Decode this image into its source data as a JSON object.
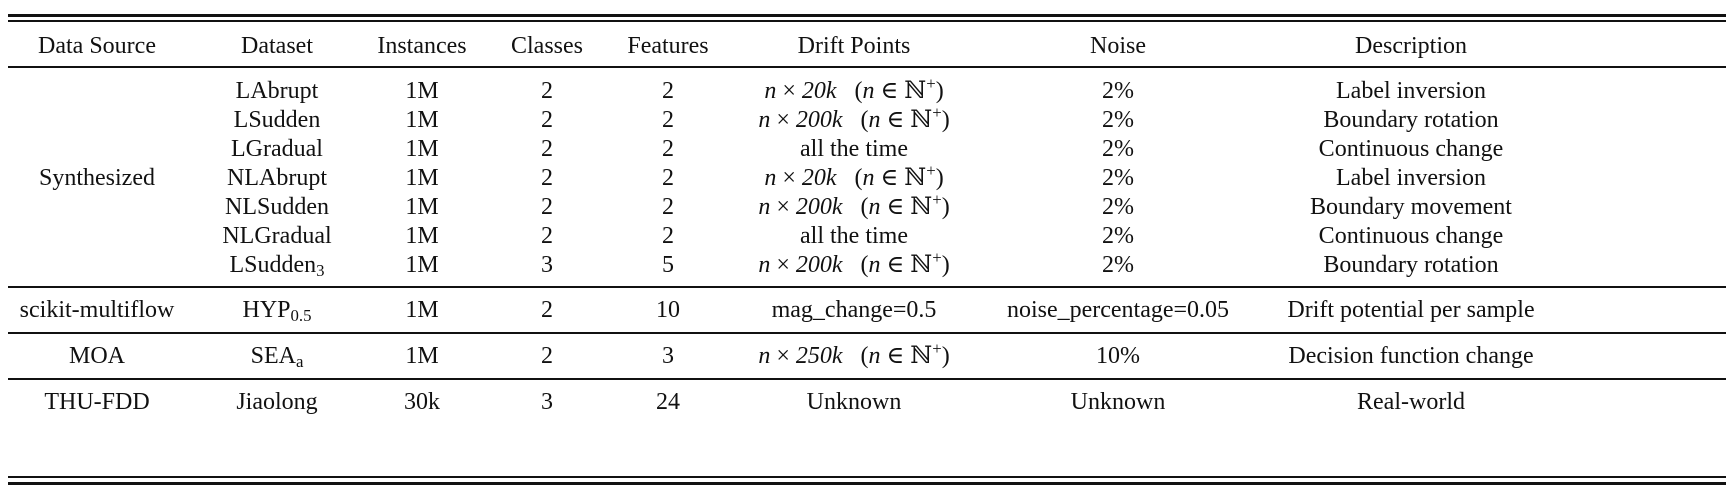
{
  "table": {
    "headers": [
      "Data Source",
      "Dataset",
      "Instances",
      "Classes",
      "Features",
      "Drift Points",
      "Noise",
      "Description"
    ],
    "groups": [
      {
        "source": "Synthesized",
        "rows": [
          {
            "dataset": "LAbrupt",
            "dataset_sub": "",
            "instances": "1M",
            "classes": "2",
            "features": "2",
            "drift": {
              "type": "math",
              "mult": "20k"
            },
            "noise": "2%",
            "description": "Label inversion"
          },
          {
            "dataset": "LSudden",
            "dataset_sub": "",
            "instances": "1M",
            "classes": "2",
            "features": "2",
            "drift": {
              "type": "math",
              "mult": "200k"
            },
            "noise": "2%",
            "description": "Boundary rotation"
          },
          {
            "dataset": "LGradual",
            "dataset_sub": "",
            "instances": "1M",
            "classes": "2",
            "features": "2",
            "drift": {
              "type": "text",
              "text": "all the time"
            },
            "noise": "2%",
            "description": "Continuous change"
          },
          {
            "dataset": "NLAbrupt",
            "dataset_sub": "",
            "instances": "1M",
            "classes": "2",
            "features": "2",
            "drift": {
              "type": "math",
              "mult": "20k"
            },
            "noise": "2%",
            "description": "Label inversion"
          },
          {
            "dataset": "NLSudden",
            "dataset_sub": "",
            "instances": "1M",
            "classes": "2",
            "features": "2",
            "drift": {
              "type": "math",
              "mult": "200k"
            },
            "noise": "2%",
            "description": "Boundary movement"
          },
          {
            "dataset": "NLGradual",
            "dataset_sub": "",
            "instances": "1M",
            "classes": "2",
            "features": "2",
            "drift": {
              "type": "text",
              "text": "all the time"
            },
            "noise": "2%",
            "description": "Continuous change"
          },
          {
            "dataset": "LSudden",
            "dataset_sub": "3",
            "instances": "1M",
            "classes": "3",
            "features": "5",
            "drift": {
              "type": "math",
              "mult": "200k"
            },
            "noise": "2%",
            "description": "Boundary rotation"
          }
        ]
      },
      {
        "source": "scikit-multiflow",
        "rows": [
          {
            "dataset": "HYP",
            "dataset_sub": "0.5",
            "instances": "1M",
            "classes": "2",
            "features": "10",
            "drift": {
              "type": "text",
              "text": "mag_change=0.5"
            },
            "noise": "noise_percentage=0.05",
            "description": "Drift potential per sample"
          }
        ]
      },
      {
        "source": "MOA",
        "rows": [
          {
            "dataset": "SEA",
            "dataset_sub": "a",
            "instances": "1M",
            "classes": "2",
            "features": "3",
            "drift": {
              "type": "math",
              "mult": "250k"
            },
            "noise": "10%",
            "description": "Decision function change"
          }
        ]
      },
      {
        "source": "THU-FDD",
        "rows": [
          {
            "dataset": "Jiaolong",
            "dataset_sub": "",
            "instances": "30k",
            "classes": "3",
            "features": "24",
            "drift": {
              "type": "text",
              "text": "Unknown"
            },
            "noise": "Unknown",
            "description": "Real-world"
          }
        ]
      }
    ],
    "math": {
      "n": "n",
      "times": "×",
      "in": "∈",
      "naturals": "ℕ",
      "plus": "+"
    }
  }
}
